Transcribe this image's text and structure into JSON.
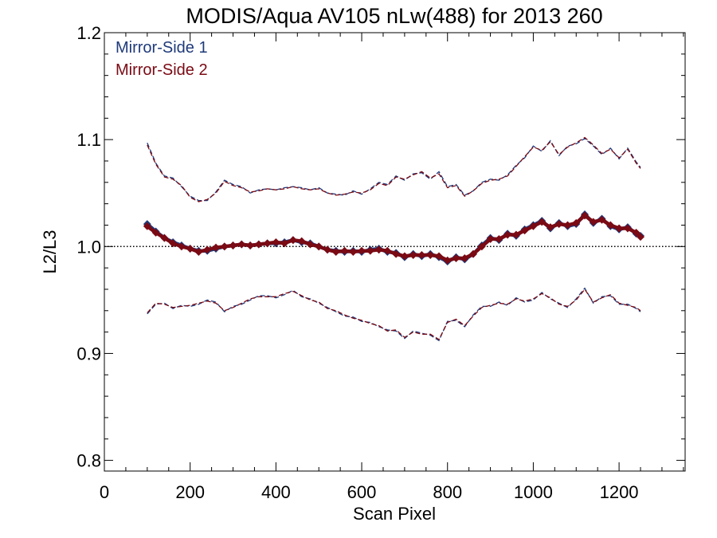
{
  "chart_data": {
    "type": "line",
    "title": "MODIS/Aqua AV105 nLw(488) for 2013 260",
    "xlabel": "Scan Pixel",
    "ylabel": "L2/L3",
    "xlim": [
      0,
      1354
    ],
    "ylim": [
      0.79,
      1.2
    ],
    "xticks": [
      0,
      200,
      400,
      600,
      800,
      1000,
      1200
    ],
    "xtick_labels": [
      "0",
      "200",
      "400",
      "600",
      "800",
      "1000",
      "1200"
    ],
    "yticks": [
      0.8,
      0.9,
      1.0,
      1.1,
      1.2
    ],
    "ytick_labels": [
      "0.8",
      "0.9",
      "1.0",
      "1.1",
      "1.2"
    ],
    "x_minor_step": 50,
    "y_minor_step": 0.02,
    "grid": false,
    "legend_position": "top-left",
    "reference_line": {
      "y": 1.0,
      "style": "dotted",
      "color": "#000000"
    },
    "colors": {
      "ms1": "#1f3a7a",
      "ms2": "#7a0a14"
    },
    "series": [
      {
        "name": "Mirror-Side 1",
        "color": "#1f3a7a",
        "style": "points",
        "x": [
          100,
          120,
          140,
          160,
          180,
          200,
          220,
          240,
          260,
          280,
          300,
          320,
          340,
          360,
          380,
          400,
          420,
          440,
          460,
          480,
          500,
          520,
          540,
          560,
          580,
          600,
          620,
          640,
          660,
          680,
          700,
          720,
          740,
          760,
          780,
          800,
          820,
          840,
          860,
          880,
          900,
          920,
          940,
          960,
          980,
          1000,
          1020,
          1040,
          1060,
          1080,
          1100,
          1120,
          1140,
          1160,
          1180,
          1200,
          1220,
          1240,
          1250
        ],
        "y": [
          1.021,
          1.014,
          1.008,
          1.004,
          1.001,
          0.998,
          0.996,
          0.996,
          0.998,
          1.0,
          1.001,
          1.002,
          1.001,
          1.002,
          1.003,
          1.003,
          1.004,
          1.006,
          1.004,
          1.003,
          1.0,
          0.997,
          0.996,
          0.995,
          0.996,
          0.995,
          0.997,
          0.998,
          0.995,
          0.994,
          0.99,
          0.993,
          0.991,
          0.993,
          0.99,
          0.986,
          0.99,
          0.988,
          0.993,
          1.001,
          1.008,
          1.006,
          1.012,
          1.01,
          1.016,
          1.02,
          1.024,
          1.017,
          1.022,
          1.019,
          1.021,
          1.03,
          1.022,
          1.026,
          1.019,
          1.016,
          1.018,
          1.012,
          1.01
        ]
      },
      {
        "name": "Mirror-Side 2",
        "color": "#7a0a14",
        "style": "points",
        "x": [
          100,
          120,
          140,
          160,
          180,
          200,
          220,
          240,
          260,
          280,
          300,
          320,
          340,
          360,
          380,
          400,
          420,
          440,
          460,
          480,
          500,
          520,
          540,
          560,
          580,
          600,
          620,
          640,
          660,
          680,
          700,
          720,
          740,
          760,
          780,
          800,
          820,
          840,
          860,
          880,
          900,
          920,
          940,
          960,
          980,
          1000,
          1020,
          1040,
          1060,
          1080,
          1100,
          1120,
          1140,
          1160,
          1180,
          1200,
          1220,
          1240,
          1250
        ],
        "y": [
          1.019,
          1.013,
          1.008,
          1.003,
          1.0,
          0.998,
          0.995,
          0.997,
          0.999,
          1.0,
          1.001,
          1.002,
          1.001,
          1.002,
          1.003,
          1.004,
          1.003,
          1.006,
          1.005,
          1.002,
          1.0,
          0.997,
          0.995,
          0.996,
          0.995,
          0.996,
          0.996,
          0.997,
          0.996,
          0.993,
          0.991,
          0.992,
          0.992,
          0.992,
          0.991,
          0.987,
          0.989,
          0.989,
          0.993,
          1.0,
          1.007,
          1.007,
          1.011,
          1.011,
          1.015,
          1.019,
          1.023,
          1.018,
          1.021,
          1.02,
          1.022,
          1.029,
          1.023,
          1.025,
          1.02,
          1.017,
          1.017,
          1.013,
          1.009
        ]
      },
      {
        "name": "Mirror-Side 1 upper",
        "color": "#1f3a7a",
        "style": "dashed",
        "x": [
          100,
          120,
          140,
          160,
          180,
          200,
          220,
          240,
          260,
          280,
          300,
          320,
          340,
          360,
          380,
          400,
          420,
          440,
          460,
          480,
          500,
          520,
          540,
          560,
          580,
          600,
          620,
          640,
          660,
          680,
          700,
          720,
          740,
          760,
          780,
          800,
          820,
          840,
          860,
          880,
          900,
          920,
          940,
          960,
          980,
          1000,
          1020,
          1040,
          1060,
          1080,
          1100,
          1120,
          1140,
          1160,
          1180,
          1200,
          1220,
          1240,
          1250
        ],
        "y": [
          1.097,
          1.078,
          1.066,
          1.064,
          1.056,
          1.047,
          1.043,
          1.043,
          1.051,
          1.062,
          1.058,
          1.056,
          1.05,
          1.053,
          1.054,
          1.053,
          1.055,
          1.056,
          1.055,
          1.053,
          1.055,
          1.05,
          1.049,
          1.048,
          1.052,
          1.049,
          1.054,
          1.06,
          1.058,
          1.066,
          1.062,
          1.068,
          1.069,
          1.063,
          1.07,
          1.056,
          1.058,
          1.048,
          1.052,
          1.06,
          1.063,
          1.062,
          1.067,
          1.076,
          1.083,
          1.094,
          1.089,
          1.099,
          1.085,
          1.094,
          1.096,
          1.101,
          1.094,
          1.086,
          1.092,
          1.082,
          1.092,
          1.079,
          1.074
        ]
      },
      {
        "name": "Mirror-Side 2 upper",
        "color": "#7a0a14",
        "style": "dashed",
        "x": [
          100,
          120,
          140,
          160,
          180,
          200,
          220,
          240,
          260,
          280,
          300,
          320,
          340,
          360,
          380,
          400,
          420,
          440,
          460,
          480,
          500,
          520,
          540,
          560,
          580,
          600,
          620,
          640,
          660,
          680,
          700,
          720,
          740,
          760,
          780,
          800,
          820,
          840,
          860,
          880,
          900,
          920,
          940,
          960,
          980,
          1000,
          1020,
          1040,
          1060,
          1080,
          1100,
          1120,
          1140,
          1160,
          1180,
          1200,
          1220,
          1240,
          1250
        ],
        "y": [
          1.095,
          1.077,
          1.065,
          1.063,
          1.057,
          1.046,
          1.042,
          1.044,
          1.05,
          1.061,
          1.057,
          1.055,
          1.051,
          1.052,
          1.054,
          1.053,
          1.054,
          1.056,
          1.054,
          1.053,
          1.054,
          1.05,
          1.048,
          1.049,
          1.051,
          1.05,
          1.053,
          1.059,
          1.057,
          1.065,
          1.063,
          1.067,
          1.07,
          1.064,
          1.068,
          1.055,
          1.057,
          1.047,
          1.052,
          1.059,
          1.062,
          1.063,
          1.066,
          1.075,
          1.084,
          1.093,
          1.09,
          1.098,
          1.086,
          1.093,
          1.097,
          1.102,
          1.095,
          1.087,
          1.091,
          1.083,
          1.091,
          1.078,
          1.073
        ]
      },
      {
        "name": "Mirror-Side 1 lower",
        "color": "#1f3a7a",
        "style": "dashed",
        "x": [
          100,
          120,
          140,
          160,
          180,
          200,
          220,
          240,
          260,
          280,
          300,
          320,
          340,
          360,
          380,
          400,
          420,
          440,
          460,
          480,
          500,
          520,
          540,
          560,
          580,
          600,
          620,
          640,
          660,
          680,
          700,
          720,
          740,
          760,
          780,
          800,
          820,
          840,
          860,
          880,
          900,
          920,
          940,
          960,
          980,
          1000,
          1020,
          1040,
          1060,
          1080,
          1100,
          1120,
          1140,
          1160,
          1180,
          1200,
          1220,
          1240,
          1250
        ],
        "y": [
          0.937,
          0.946,
          0.947,
          0.942,
          0.945,
          0.944,
          0.946,
          0.95,
          0.948,
          0.939,
          0.944,
          0.946,
          0.95,
          0.954,
          0.954,
          0.952,
          0.955,
          0.959,
          0.953,
          0.951,
          0.947,
          0.943,
          0.939,
          0.935,
          0.934,
          0.93,
          0.929,
          0.925,
          0.922,
          0.921,
          0.914,
          0.921,
          0.919,
          0.917,
          0.912,
          0.93,
          0.931,
          0.925,
          0.936,
          0.944,
          0.944,
          0.948,
          0.945,
          0.952,
          0.948,
          0.95,
          0.957,
          0.951,
          0.947,
          0.943,
          0.951,
          0.961,
          0.947,
          0.953,
          0.954,
          0.946,
          0.946,
          0.942,
          0.939
        ]
      },
      {
        "name": "Mirror-Side 2 lower",
        "color": "#7a0a14",
        "style": "dashed",
        "x": [
          100,
          120,
          140,
          160,
          180,
          200,
          220,
          240,
          260,
          280,
          300,
          320,
          340,
          360,
          380,
          400,
          420,
          440,
          460,
          480,
          500,
          520,
          540,
          560,
          580,
          600,
          620,
          640,
          660,
          680,
          700,
          720,
          740,
          760,
          780,
          800,
          820,
          840,
          860,
          880,
          900,
          920,
          940,
          960,
          980,
          1000,
          1020,
          1040,
          1060,
          1080,
          1100,
          1120,
          1140,
          1160,
          1180,
          1200,
          1220,
          1240,
          1250
        ],
        "y": [
          0.938,
          0.947,
          0.946,
          0.943,
          0.944,
          0.945,
          0.947,
          0.949,
          0.947,
          0.94,
          0.943,
          0.947,
          0.951,
          0.953,
          0.953,
          0.953,
          0.956,
          0.958,
          0.954,
          0.95,
          0.948,
          0.942,
          0.94,
          0.936,
          0.933,
          0.931,
          0.928,
          0.926,
          0.921,
          0.922,
          0.915,
          0.92,
          0.918,
          0.918,
          0.913,
          0.929,
          0.932,
          0.926,
          0.935,
          0.943,
          0.945,
          0.947,
          0.946,
          0.951,
          0.949,
          0.951,
          0.956,
          0.952,
          0.946,
          0.944,
          0.95,
          0.96,
          0.948,
          0.952,
          0.955,
          0.947,
          0.945,
          0.943,
          0.94
        ]
      }
    ],
    "legend": [
      {
        "label": "Mirror-Side 1",
        "color": "#1f3a7a"
      },
      {
        "label": "Mirror-Side 2",
        "color": "#7a0a14"
      }
    ]
  }
}
